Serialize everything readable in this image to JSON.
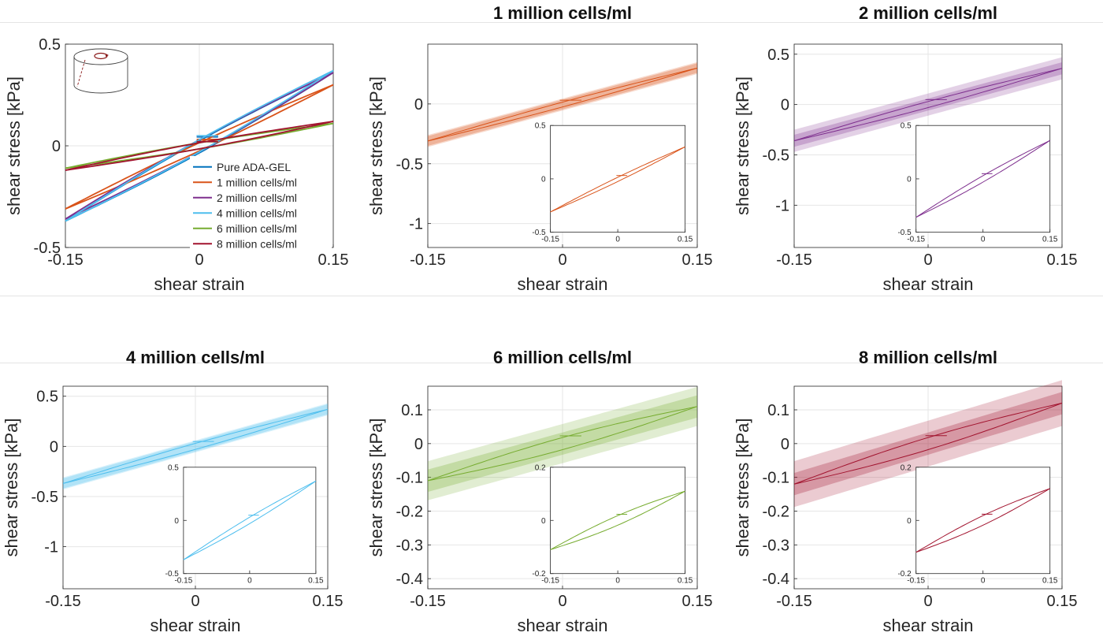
{
  "chart_data": [
    {
      "type": "line",
      "title": "",
      "xlabel": "shear strain",
      "ylabel": "shear stress [kPa]",
      "xlim": [
        -0.15,
        0.15
      ],
      "ylim": [
        -0.5,
        0.5
      ],
      "xticks": [
        -0.15,
        0,
        0.15
      ],
      "xtick_labels": [
        "-0.15",
        "0",
        "0.15"
      ],
      "yticks": [
        -0.5,
        0,
        0.5
      ],
      "ytick_labels": [
        "-0.5",
        "0",
        "0.5"
      ],
      "grid": true,
      "legend": "bottom-right",
      "inset_icon": "rheometer-cylinder-icon",
      "series": [
        {
          "name": "Pure ADA-GEL",
          "color": "#0072bd",
          "x": [
            -0.15,
            0,
            0.15
          ],
          "y": [
            -0.37,
            0,
            0.36
          ],
          "loop_width": 0.03
        },
        {
          "name": "1 million cells/ml",
          "color": "#d95319",
          "x": [
            -0.15,
            0,
            0.15
          ],
          "y": [
            -0.31,
            0,
            0.3
          ],
          "loop_width": 0.02
        },
        {
          "name": "2 million cells/ml",
          "color": "#7e2f8e",
          "x": [
            -0.15,
            0,
            0.15
          ],
          "y": [
            -0.36,
            0,
            0.36
          ],
          "loop_width": 0.03
        },
        {
          "name": "4 million cells/ml",
          "color": "#4dbeee",
          "x": [
            -0.15,
            0,
            0.15
          ],
          "y": [
            -0.37,
            0,
            0.37
          ],
          "loop_width": 0.03
        },
        {
          "name": "6 million cells/ml",
          "color": "#77ac30",
          "x": [
            -0.15,
            0,
            0.15
          ],
          "y": [
            -0.11,
            0,
            0.11
          ],
          "loop_width": 0.015
        },
        {
          "name": "8 million cells/ml",
          "color": "#a2142f",
          "x": [
            -0.15,
            0,
            0.15
          ],
          "y": [
            -0.12,
            0,
            0.12
          ],
          "loop_width": 0.015
        }
      ]
    },
    {
      "type": "area",
      "title": "1 million cells/ml",
      "xlabel": "shear strain",
      "ylabel": "shear stress [kPa]",
      "xlim": [
        -0.15,
        0.15
      ],
      "ylim": [
        -1.2,
        0.5
      ],
      "xticks": [
        -0.15,
        0,
        0.15
      ],
      "xtick_labels": [
        "-0.15",
        "0",
        "0.15"
      ],
      "yticks": [
        -1,
        -0.5,
        0
      ],
      "ytick_labels": [
        "-1",
        "-0.5",
        "0"
      ],
      "grid": true,
      "color": "#d95319",
      "series": [
        {
          "x": [
            -0.15,
            0,
            0.15
          ],
          "y": [
            -0.31,
            0,
            0.3
          ],
          "band_inner": 0.02,
          "band_outer": 0.03,
          "loop_width": 0.02
        }
      ],
      "inset": {
        "xlim": [
          -0.15,
          0.15
        ],
        "ylim": [
          -0.5,
          0.5
        ],
        "xticks": [
          -0.15,
          0,
          0.15
        ],
        "xtick_labels": [
          "-0.15",
          "0",
          "0.15"
        ],
        "yticks": [
          -0.5,
          0,
          0.5
        ],
        "ytick_labels": [
          "-0.5",
          "0",
          "0.5"
        ]
      }
    },
    {
      "type": "area",
      "title": "2 million cells/ml",
      "xlabel": "shear strain",
      "ylabel": "shear stress [kPa]",
      "xlim": [
        -0.15,
        0.15
      ],
      "ylim": [
        -1.42,
        0.6
      ],
      "xticks": [
        -0.15,
        0,
        0.15
      ],
      "xtick_labels": [
        "-0.15",
        "0",
        "0.15"
      ],
      "yticks": [
        -1,
        -0.5,
        0,
        0.5
      ],
      "ytick_labels": [
        "-1",
        "-0.5",
        "0",
        "0.5"
      ],
      "grid": true,
      "color": "#7e2f8e",
      "series": [
        {
          "x": [
            -0.15,
            0,
            0.15
          ],
          "y": [
            -0.36,
            0,
            0.36
          ],
          "band_inner": 0.03,
          "band_outer": 0.08,
          "loop_width": 0.03
        }
      ],
      "inset": {
        "xlim": [
          -0.15,
          0.15
        ],
        "ylim": [
          -0.5,
          0.5
        ],
        "xticks": [
          -0.15,
          0,
          0.15
        ],
        "xtick_labels": [
          "-0.15",
          "0",
          "0.15"
        ],
        "yticks": [
          -0.5,
          0,
          0.5
        ],
        "ytick_labels": [
          "-0.5",
          "0",
          "0.5"
        ]
      }
    },
    {
      "type": "area",
      "title": "4 million cells/ml",
      "xlabel": "shear strain",
      "ylabel": "shear stress [kPa]",
      "xlim": [
        -0.15,
        0.15
      ],
      "ylim": [
        -1.42,
        0.6
      ],
      "xticks": [
        -0.15,
        0,
        0.15
      ],
      "xtick_labels": [
        "-0.15",
        "0",
        "0.15"
      ],
      "yticks": [
        -1,
        -0.5,
        0,
        0.5
      ],
      "ytick_labels": [
        "-1",
        "-0.5",
        "0",
        "0.5"
      ],
      "grid": true,
      "color": "#4dbeee",
      "series": [
        {
          "x": [
            -0.15,
            0,
            0.15
          ],
          "y": [
            -0.37,
            0,
            0.37
          ],
          "band_inner": 0.02,
          "band_outer": 0.03,
          "loop_width": 0.03
        }
      ],
      "inset": {
        "xlim": [
          -0.15,
          0.15
        ],
        "ylim": [
          -0.5,
          0.5
        ],
        "xticks": [
          -0.15,
          0,
          0.15
        ],
        "xtick_labels": [
          "-0.15",
          "0",
          "0.15"
        ],
        "yticks": [
          -0.5,
          0,
          0.5
        ],
        "ytick_labels": [
          "-0.5",
          "0",
          "0.5"
        ]
      }
    },
    {
      "type": "area",
      "title": "6 million cells/ml",
      "xlabel": "shear strain",
      "ylabel": "shear stress [kPa]",
      "xlim": [
        -0.15,
        0.15
      ],
      "ylim": [
        -0.43,
        0.17
      ],
      "xticks": [
        -0.15,
        0,
        0.15
      ],
      "xtick_labels": [
        "-0.15",
        "0",
        "0.15"
      ],
      "yticks": [
        -0.4,
        -0.3,
        -0.2,
        -0.1,
        0,
        0.1
      ],
      "ytick_labels": [
        "-0.4",
        "-0.3",
        "-0.2",
        "-0.1",
        "0",
        "0.1"
      ],
      "grid": true,
      "color": "#77ac30",
      "series": [
        {
          "x": [
            -0.15,
            0,
            0.15
          ],
          "y": [
            -0.11,
            0,
            0.11
          ],
          "band_inner": 0.015,
          "band_outer": 0.04,
          "loop_width": 0.018
        }
      ],
      "inset": {
        "xlim": [
          -0.15,
          0.15
        ],
        "ylim": [
          -0.2,
          0.2
        ],
        "xticks": [
          -0.15,
          0,
          0.15
        ],
        "xtick_labels": [
          "-0.15",
          "0",
          "0.15"
        ],
        "yticks": [
          -0.2,
          0,
          0.2
        ],
        "ytick_labels": [
          "-0.2",
          "0",
          "0.2"
        ]
      }
    },
    {
      "type": "area",
      "title": "8 million cells/ml",
      "xlabel": "shear strain",
      "ylabel": "shear stress [kPa]",
      "xlim": [
        -0.15,
        0.15
      ],
      "ylim": [
        -0.43,
        0.17
      ],
      "xticks": [
        -0.15,
        0,
        0.15
      ],
      "xtick_labels": [
        "-0.15",
        "0",
        "0.15"
      ],
      "yticks": [
        -0.4,
        -0.3,
        -0.2,
        -0.1,
        0,
        0.1
      ],
      "ytick_labels": [
        "-0.4",
        "-0.3",
        "-0.2",
        "-0.1",
        "0",
        "0.1"
      ],
      "grid": true,
      "color": "#a2142f",
      "series": [
        {
          "x": [
            -0.15,
            0,
            0.15
          ],
          "y": [
            -0.12,
            0,
            0.12
          ],
          "band_inner": 0.015,
          "band_outer": 0.05,
          "loop_width": 0.018
        }
      ],
      "inset": {
        "xlim": [
          -0.15,
          0.15
        ],
        "ylim": [
          -0.2,
          0.2
        ],
        "xticks": [
          -0.15,
          0,
          0.15
        ],
        "xtick_labels": [
          "-0.15",
          "0",
          "0.15"
        ],
        "yticks": [
          -0.2,
          0,
          0.2
        ],
        "ytick_labels": [
          "-0.2",
          "0",
          "0.2"
        ]
      }
    }
  ]
}
